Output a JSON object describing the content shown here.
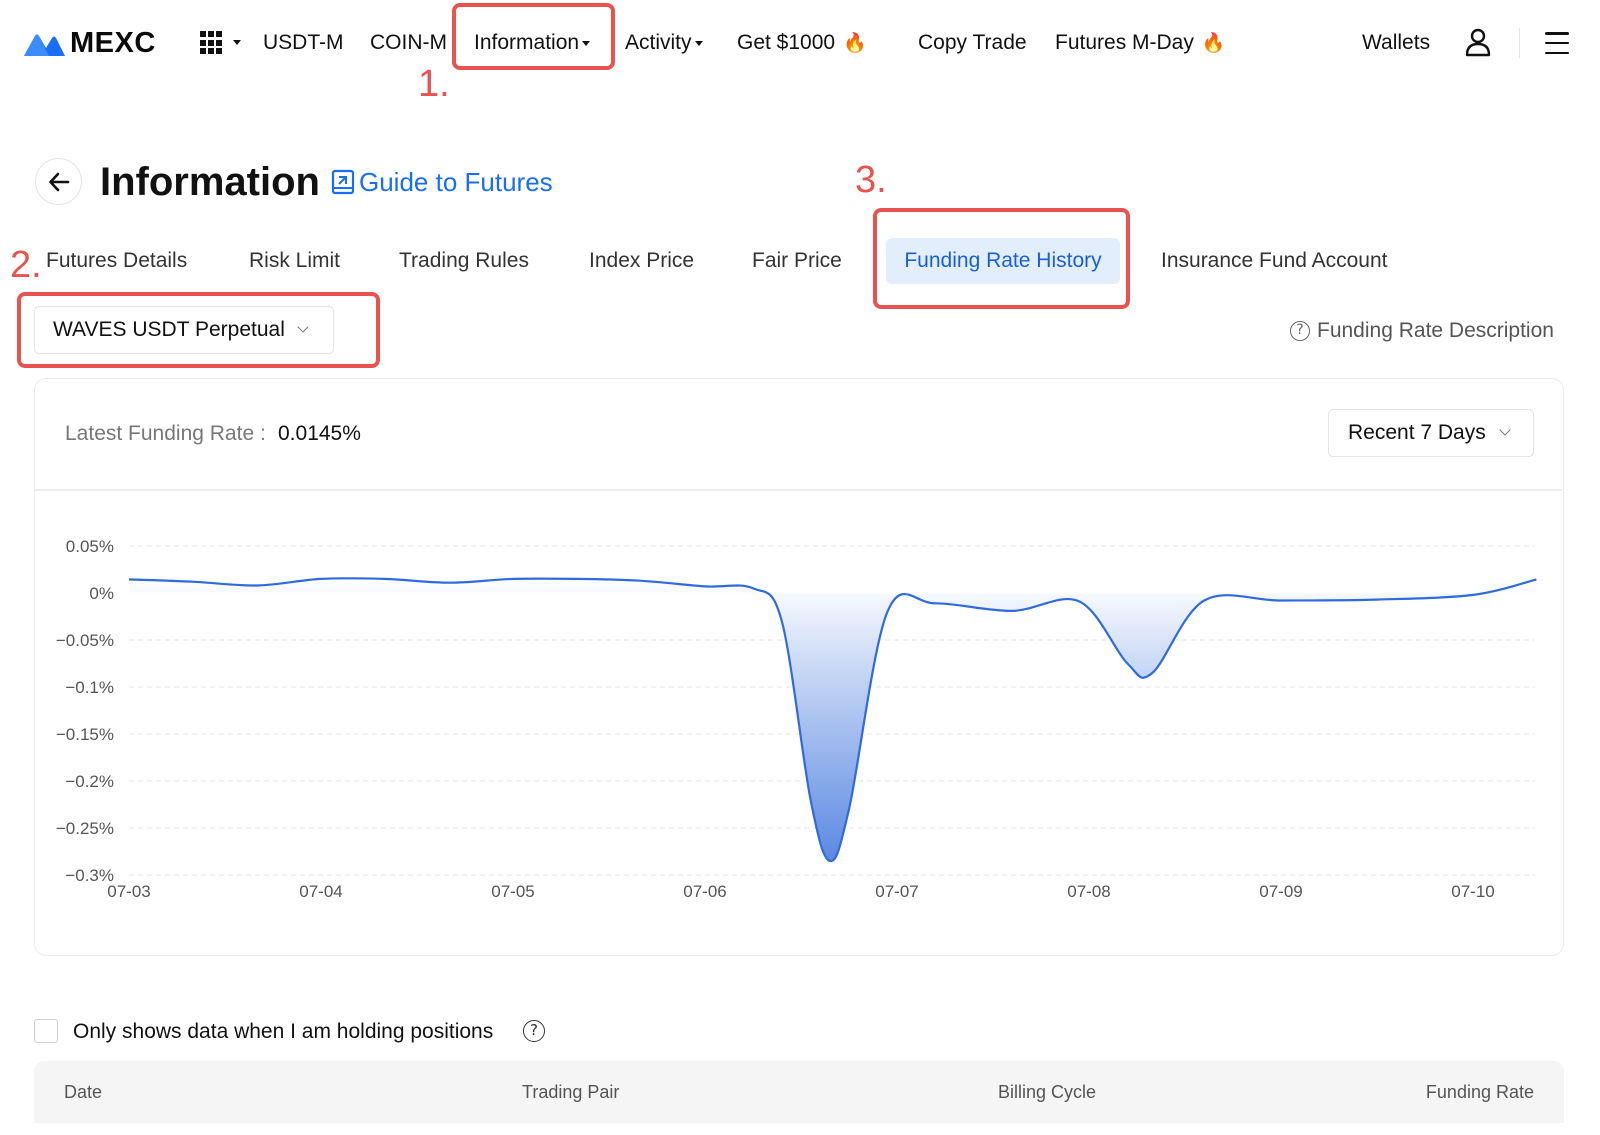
{
  "brand": {
    "name": "MEXC",
    "logo_color": "#1a6ef5"
  },
  "nav": {
    "items": [
      {
        "label": "USDT-M",
        "caret": false,
        "fire": false
      },
      {
        "label": "COIN-M",
        "caret": false,
        "fire": false
      },
      {
        "label": "Information",
        "caret": true,
        "fire": false
      },
      {
        "label": "Activity",
        "caret": true,
        "fire": false
      },
      {
        "label": "Get $1000",
        "caret": false,
        "fire": true
      },
      {
        "label": "Copy Trade",
        "caret": false,
        "fire": false
      },
      {
        "label": "Futures M-Day",
        "caret": false,
        "fire": true
      }
    ],
    "wallets_label": "Wallets",
    "icons": [
      "apps-grid-icon",
      "user-icon",
      "menu-icon",
      "fire-icon"
    ]
  },
  "annotations": {
    "step1": "1.",
    "step2": "2.",
    "step3": "3.",
    "color": "#e8524f"
  },
  "header": {
    "title": "Information",
    "guide_link": "Guide to Futures",
    "link_color": "#1a6ef5"
  },
  "tabs": [
    {
      "label": "Futures Details",
      "active": false
    },
    {
      "label": "Risk Limit",
      "active": false
    },
    {
      "label": "Trading Rules",
      "active": false
    },
    {
      "label": "Index Price",
      "active": false
    },
    {
      "label": "Fair Price",
      "active": false
    },
    {
      "label": "Funding Rate History",
      "active": true
    },
    {
      "label": "Insurance Fund Account",
      "active": false
    }
  ],
  "contract_select": {
    "value": "WAVES USDT Perpetual"
  },
  "funding_rate_description": "Funding Rate Description",
  "latest": {
    "label": "Latest Funding Rate :",
    "value": "0.0145%"
  },
  "range_select": {
    "value": "Recent 7 Days"
  },
  "chart_data": {
    "type": "area",
    "x_labels": [
      "07-03",
      "07-04",
      "07-05",
      "07-06",
      "07-07",
      "07-08",
      "07-09",
      "07-10"
    ],
    "y_ticks": [
      0.05,
      0,
      -0.05,
      -0.1,
      -0.15,
      -0.2,
      -0.25,
      -0.3
    ],
    "y_tick_labels": [
      "0.05%",
      "0%",
      "−0.05%",
      "−0.1%",
      "−0.15%",
      "−0.2%",
      "−0.25%",
      "−0.3%"
    ],
    "ylim": [
      -0.3,
      0.05
    ],
    "grid": true,
    "line_color": "#2f6bdb",
    "series": [
      {
        "x": [
          0,
          0.33,
          0.67,
          1.0,
          1.33,
          1.67,
          2.0,
          2.33,
          2.67,
          3.0,
          3.25,
          3.4,
          3.55,
          3.65,
          3.75,
          3.95,
          4.2,
          4.6,
          4.95,
          5.2,
          5.33,
          5.6,
          6.0,
          6.5,
          7.0,
          7.33
        ],
        "y": [
          0.0145,
          0.012,
          0.008,
          0.015,
          0.015,
          0.011,
          0.015,
          0.015,
          0.013,
          0.007,
          0.005,
          -0.03,
          -0.22,
          -0.285,
          -0.23,
          -0.02,
          -0.011,
          -0.019,
          -0.009,
          -0.075,
          -0.085,
          -0.008,
          -0.008,
          -0.007,
          -0.002,
          0.0145
        ]
      }
    ]
  },
  "filter": {
    "label": "Only shows data when I am holding positions"
  },
  "table": {
    "columns": [
      "Date",
      "Trading Pair",
      "Billing Cycle",
      "Funding Rate"
    ]
  }
}
